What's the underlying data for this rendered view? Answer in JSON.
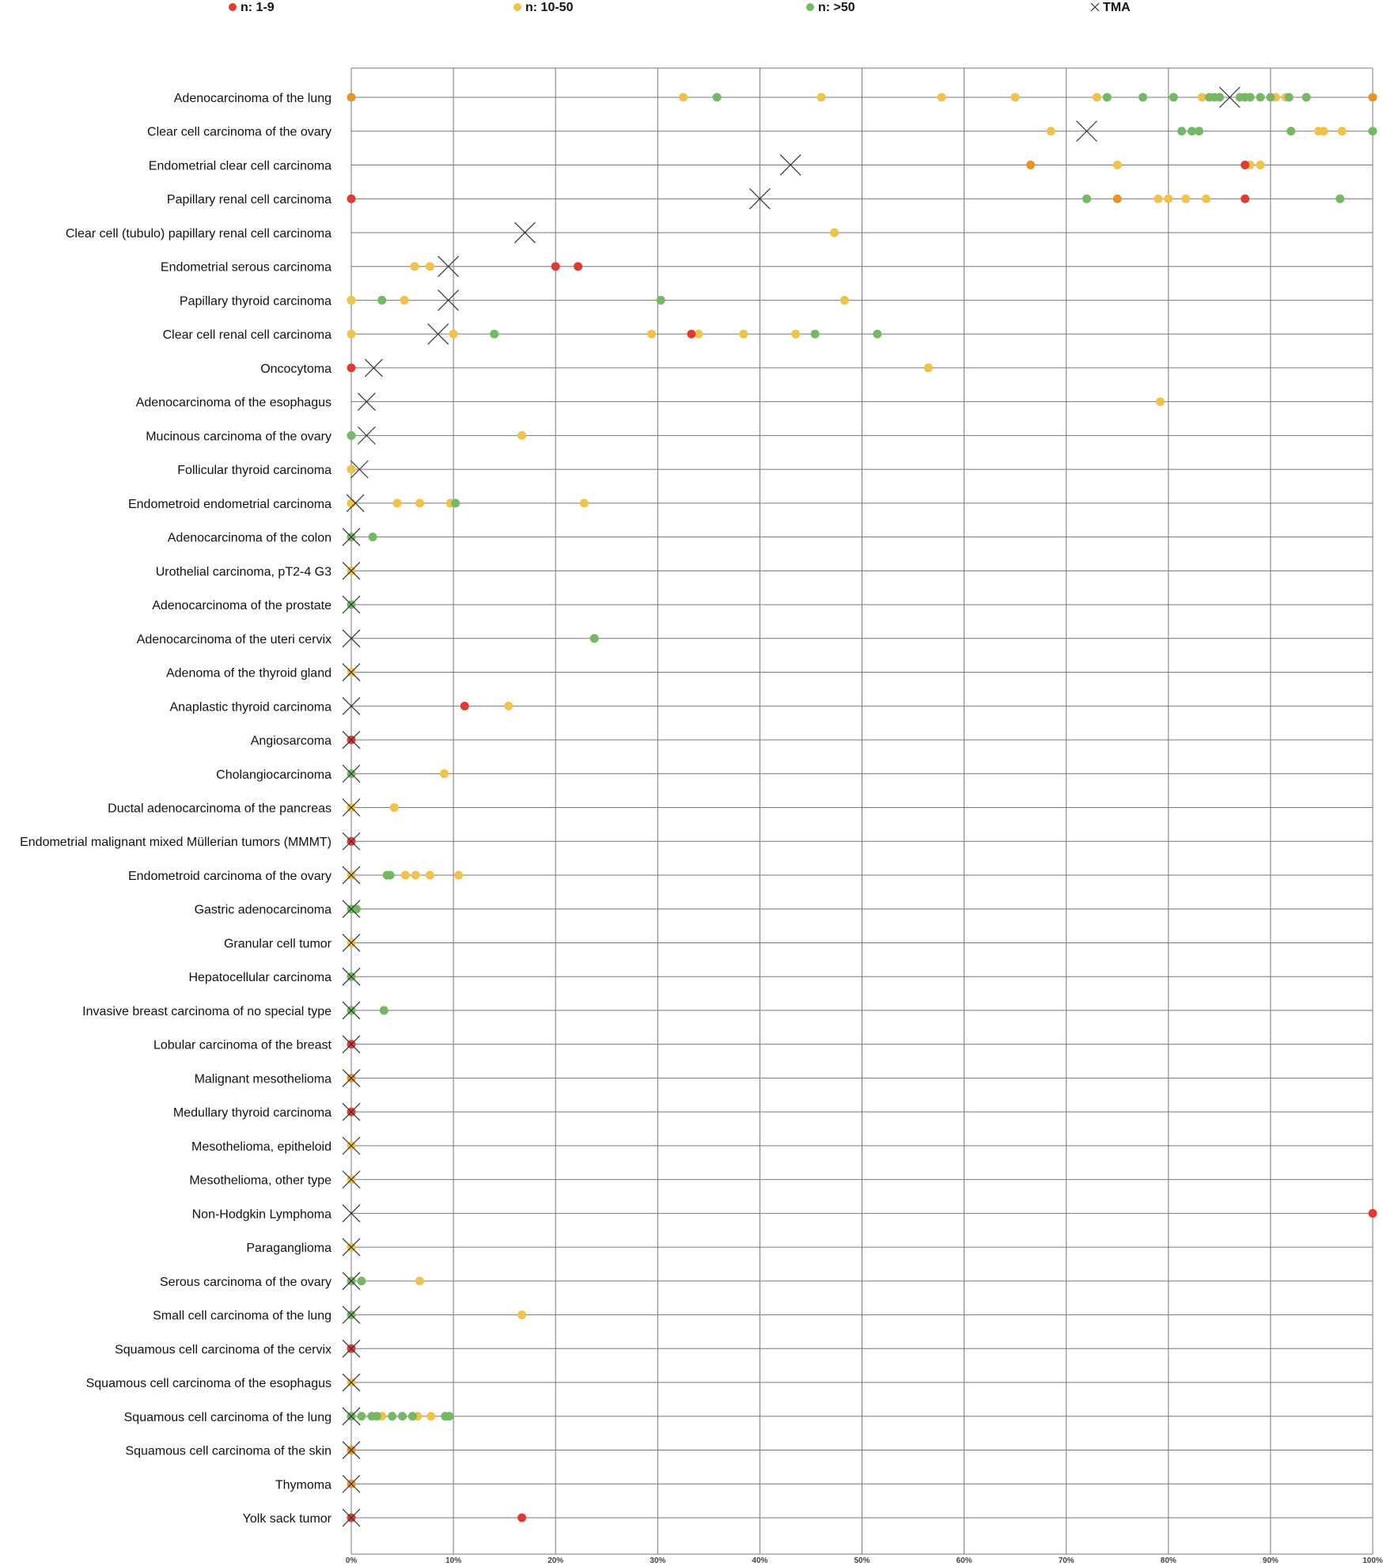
{
  "chart_data": {
    "type": "scatter",
    "title": "",
    "xlabel": "",
    "ylabel": "",
    "xlim": [
      0,
      100
    ],
    "x_ticks": [
      "0%",
      "10%",
      "20%",
      "30%",
      "40%",
      "50%",
      "60%",
      "70%",
      "80%",
      "90%",
      "100%"
    ],
    "grid": true,
    "legend_placement": "top",
    "legend": [
      {
        "key": "low",
        "label": "n: 1-9",
        "color": "#e03a32",
        "marker": "dot"
      },
      {
        "key": "mid",
        "label": "n: 10-50",
        "color": "#f0c24a",
        "marker": "dot"
      },
      {
        "key": "high",
        "label": "n: >50",
        "color": "#74b865",
        "marker": "dot"
      },
      {
        "key": "tma",
        "label": "TMA",
        "color": "#333333",
        "marker": "cross"
      }
    ],
    "colors": {
      "overlap": "#e8922a"
    },
    "categories": [
      "Adenocarcinoma of the lung",
      "Clear cell carcinoma of the ovary",
      "Endometrial clear cell carcinoma",
      "Papillary renal cell carcinoma",
      "Clear cell (tubulo) papillary renal cell carcinoma",
      "Endometrial serous carcinoma",
      "Papillary thyroid carcinoma",
      "Clear cell renal cell carcinoma",
      "Oncocytoma",
      "Adenocarcinoma of the esophagus",
      "Mucinous carcinoma of the ovary",
      "Follicular thyroid carcinoma",
      "Endometroid endometrial carcinoma",
      "Adenocarcinoma of the colon",
      "Urothelial carcinoma, pT2-4 G3",
      "Adenocarcinoma of the prostate",
      "Adenocarcinoma of the uteri cervix",
      "Adenoma of the thyroid gland",
      "Anaplastic thyroid carcinoma",
      "Angiosarcoma",
      "Cholangiocarcinoma",
      "Ductal adenocarcinoma of the pancreas",
      "Endometrial malignant mixed Müllerian tumors (MMMT)",
      "Endometroid carcinoma of the ovary",
      "Gastric adenocarcinoma",
      "Granular cell tumor",
      "Hepatocellular carcinoma",
      "Invasive breast carcinoma of no special type",
      "Lobular carcinoma of the breast",
      "Malignant mesothelioma",
      "Medullary thyroid carcinoma",
      "Mesothelioma, epitheloid",
      "Mesothelioma, other type",
      "Non-Hodgkin Lymphoma",
      "Paraganglioma",
      "Serous carcinoma of the ovary",
      "Small cell carcinoma of the lung",
      "Squamous cell carcinoma of the cervix",
      "Squamous cell carcinoma of the esophagus",
      "Squamous cell carcinoma of the lung",
      "Squamous cell carcinoma of the skin",
      "Thymoma",
      "Yolk sack tumor"
    ],
    "tma": [
      86,
      72,
      43,
      40,
      17,
      9.5,
      9.5,
      8.5,
      2.2,
      1.5,
      1.5,
      0.8,
      0.4,
      0,
      0,
      0,
      0,
      0,
      0,
      0,
      0,
      0,
      0,
      0,
      0,
      0,
      0,
      0,
      0,
      0,
      0,
      0,
      0,
      0,
      0,
      0,
      0,
      0,
      0,
      0,
      0,
      0,
      0
    ],
    "points": [
      {
        "mid": [
          32.5,
          46,
          57.8,
          65,
          73,
          83.3,
          88,
          90.5,
          91.5
        ],
        "high": [
          35.8,
          74,
          77.5,
          80.5,
          84,
          84.5,
          85,
          87,
          87.5,
          88,
          89,
          90,
          91.8,
          93.5
        ],
        "overlap": [
          0,
          100
        ]
      },
      {
        "mid": [
          68.5,
          94.7,
          95.2,
          97
        ],
        "high": [
          81.3,
          82.3,
          83,
          92,
          100
        ]
      },
      {
        "mid": [
          75,
          88,
          89
        ],
        "low": [
          87.5
        ],
        "overlap": [
          66.5
        ]
      },
      {
        "mid": [
          79,
          80,
          81.7,
          83.7
        ],
        "high": [
          72,
          96.8
        ],
        "low": [
          0,
          87.5
        ],
        "overlap": [
          75
        ]
      },
      {
        "mid": [
          47.3
        ]
      },
      {
        "mid": [
          6.2,
          7.7
        ],
        "low": [
          20,
          22.2
        ]
      },
      {
        "mid": [
          0,
          5.2,
          48.3
        ],
        "high": [
          3,
          30.3
        ]
      },
      {
        "mid": [
          0,
          10,
          29.4,
          34,
          38.4,
          43.5
        ],
        "high": [
          14,
          45.4,
          51.5
        ],
        "low": [
          33.3
        ]
      },
      {
        "mid": [
          56.5
        ],
        "low": [
          0
        ]
      },
      {
        "mid": [
          79.2
        ]
      },
      {
        "mid": [
          16.7
        ],
        "high": [
          0
        ]
      },
      {
        "mid": [
          0
        ]
      },
      {
        "mid": [
          0,
          4.5,
          6.7,
          9.7,
          22.8
        ],
        "high": [
          10.2
        ]
      },
      {
        "high": [
          0,
          2.1
        ]
      },
      {
        "mid": [
          0
        ]
      },
      {
        "high": [
          0
        ]
      },
      {
        "high": [
          23.8
        ]
      },
      {
        "mid": [
          0
        ]
      },
      {
        "mid": [
          15.4
        ],
        "low": [
          11.1
        ]
      },
      {
        "low": [
          0
        ]
      },
      {
        "mid": [
          9.1
        ],
        "high": [
          0
        ]
      },
      {
        "mid": [
          0,
          4.2
        ]
      },
      {
        "low": [
          0
        ]
      },
      {
        "mid": [
          0,
          5.3,
          6.3,
          7.7,
          10.5
        ],
        "high": [
          3.5,
          3.8
        ]
      },
      {
        "high": [
          0,
          0.5
        ]
      },
      {
        "mid": [
          0
        ]
      },
      {
        "high": [
          0
        ]
      },
      {
        "high": [
          0,
          3.2
        ]
      },
      {
        "low": [
          0
        ]
      },
      {
        "overlap": [
          0
        ]
      },
      {
        "low": [
          0
        ]
      },
      {
        "mid": [
          0
        ]
      },
      {
        "mid": [
          0
        ]
      },
      {
        "low": [
          100
        ]
      },
      {
        "mid": [
          0
        ]
      },
      {
        "mid": [
          6.7
        ],
        "high": [
          0,
          1
        ]
      },
      {
        "mid": [
          16.7
        ],
        "high": [
          0
        ]
      },
      {
        "low": [
          0
        ]
      },
      {
        "mid": [
          0
        ]
      },
      {
        "mid": [
          3,
          6.5,
          7.8
        ],
        "high": [
          0,
          1,
          2,
          2.5,
          4,
          5,
          6,
          9.2,
          9.6
        ]
      },
      {
        "overlap": [
          0
        ]
      },
      {
        "overlap": [
          0
        ]
      },
      {
        "low": [
          0,
          16.7
        ]
      }
    ]
  }
}
